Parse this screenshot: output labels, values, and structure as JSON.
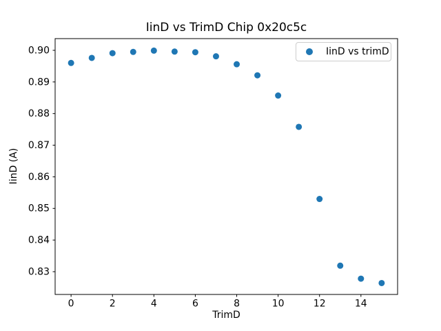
{
  "chart_data": {
    "type": "scatter",
    "title": "IinD vs TrimD Chip 0x20c5c",
    "xlabel": "TrimD",
    "ylabel": "IinD (A)",
    "legend": [
      "IinD vs trimD"
    ],
    "legend_position": "upper right",
    "marker_color": "#1f77b4",
    "axis_color": "#000000",
    "background_color": "#ffffff",
    "grid": false,
    "x": [
      0,
      1,
      2,
      3,
      4,
      5,
      6,
      7,
      8,
      9,
      10,
      11,
      12,
      13,
      14,
      15
    ],
    "y": [
      0.896,
      0.8976,
      0.8991,
      0.8995,
      0.8999,
      0.8996,
      0.8994,
      0.8981,
      0.8956,
      0.8921,
      0.8857,
      0.8758,
      0.853,
      0.8319,
      0.8278,
      0.8264
    ],
    "xlim": [
      -0.77,
      15.77
    ],
    "ylim": [
      0.8228,
      0.9037
    ],
    "xticks": [
      0,
      2,
      4,
      6,
      8,
      10,
      12,
      14
    ],
    "xtick_labels": [
      "0",
      "2",
      "4",
      "6",
      "8",
      "10",
      "12",
      "14"
    ],
    "yticks": [
      0.83,
      0.84,
      0.85,
      0.86,
      0.87,
      0.88,
      0.89,
      0.9
    ],
    "ytick_labels": [
      "0.83",
      "0.84",
      "0.85",
      "0.86",
      "0.87",
      "0.88",
      "0.89",
      "0.90"
    ]
  }
}
